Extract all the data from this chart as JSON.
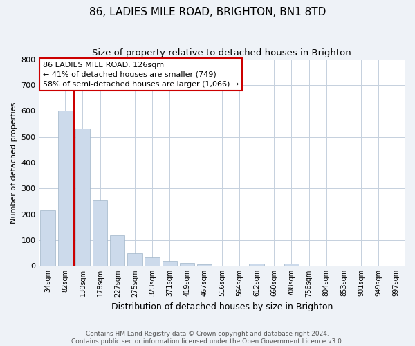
{
  "title": "86, LADIES MILE ROAD, BRIGHTON, BN1 8TD",
  "subtitle": "Size of property relative to detached houses in Brighton",
  "xlabel": "Distribution of detached houses by size in Brighton",
  "ylabel": "Number of detached properties",
  "bar_labels": [
    "34sqm",
    "82sqm",
    "130sqm",
    "178sqm",
    "227sqm",
    "275sqm",
    "323sqm",
    "371sqm",
    "419sqm",
    "467sqm",
    "516sqm",
    "564sqm",
    "612sqm",
    "660sqm",
    "708sqm",
    "756sqm",
    "804sqm",
    "853sqm",
    "901sqm",
    "949sqm",
    "997sqm"
  ],
  "bar_values": [
    215,
    600,
    530,
    255,
    118,
    50,
    33,
    20,
    12,
    5,
    0,
    0,
    8,
    0,
    8,
    0,
    0,
    0,
    0,
    0,
    0
  ],
  "bar_color": "#ccdaeb",
  "vline_x": 1.5,
  "vline_color": "#cc0000",
  "annotation_lines": [
    "86 LADIES MILE ROAD: 126sqm",
    "← 41% of detached houses are smaller (749)",
    "58% of semi-detached houses are larger (1,066) →"
  ],
  "ylim": [
    0,
    800
  ],
  "yticks": [
    0,
    100,
    200,
    300,
    400,
    500,
    600,
    700,
    800
  ],
  "footer_line1": "Contains HM Land Registry data © Crown copyright and database right 2024.",
  "footer_line2": "Contains public sector information licensed under the Open Government Licence v3.0.",
  "bg_color": "#eef2f7",
  "plot_bg_color": "#ffffff",
  "grid_color": "#c5d0dd"
}
